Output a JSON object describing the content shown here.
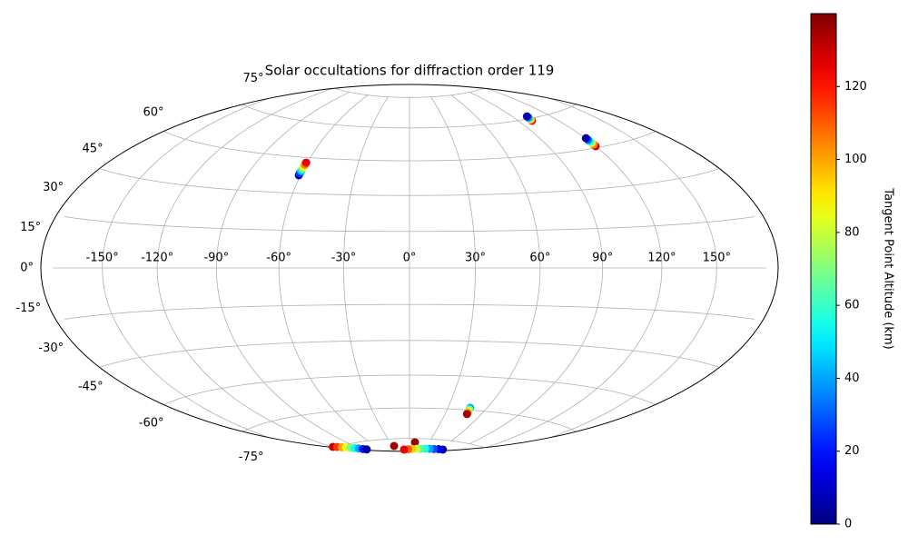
{
  "chart_data": {
    "type": "scatter",
    "title": "Solar occultations for diffraction order 119",
    "projection": "hammer",
    "grid": true,
    "xlim": [
      -180,
      180
    ],
    "ylim": [
      -90,
      90
    ],
    "xticks": [
      {
        "value": -150,
        "label": "-150°"
      },
      {
        "value": -120,
        "label": "-120°"
      },
      {
        "value": -90,
        "label": "-90°"
      },
      {
        "value": -60,
        "label": "-60°"
      },
      {
        "value": -30,
        "label": "-30°"
      },
      {
        "value": 0,
        "label": "0°"
      },
      {
        "value": 30,
        "label": "30°"
      },
      {
        "value": 60,
        "label": "60°"
      },
      {
        "value": 90,
        "label": "90°"
      },
      {
        "value": 120,
        "label": "120°"
      },
      {
        "value": 150,
        "label": "150°"
      }
    ],
    "yticks": [
      {
        "value": -75,
        "label": "-75°"
      },
      {
        "value": -60,
        "label": "-60°"
      },
      {
        "value": -45,
        "label": "-45°"
      },
      {
        "value": -30,
        "label": "-30°"
      },
      {
        "value": -15,
        "label": "-15°"
      },
      {
        "value": 0,
        "label": "0°"
      },
      {
        "value": 15,
        "label": "15°"
      },
      {
        "value": 30,
        "label": "30°"
      },
      {
        "value": 45,
        "label": "45°"
      },
      {
        "value": 60,
        "label": "60°"
      },
      {
        "value": 75,
        "label": "75°"
      }
    ],
    "x": [
      -60.9,
      -60.9,
      -60.8,
      -60.8,
      -60.7,
      -60.7,
      -60.6,
      100.4,
      100.8,
      101.1,
      101.5,
      101.8,
      120.0,
      120.1,
      120.2,
      120.2,
      120.3,
      120.4,
      47.3,
      47.5,
      47.8,
      48.0,
      48.3,
      -118,
      -113.6,
      -109.2,
      -104.8,
      -100.4,
      -96,
      -91.6,
      -87.2,
      -82.8,
      -27.8,
      8.6,
      67.5,
      58.7,
      49.8,
      41.0,
      32.2,
      23.4,
      14.6,
      5.8,
      -3.0,
      -11.8
    ],
    "y": [
      37.4,
      38.3,
      39.2,
      40.1,
      41.0,
      41.9,
      42.8,
      59.0,
      59.5,
      60.0,
      60.5,
      61.0,
      45.6,
      46.3,
      47.0,
      47.6,
      48.3,
      49.0,
      -59.0,
      -59.7,
      -60.4,
      -61.2,
      -61.9,
      -74.5,
      -75.0,
      -75.6,
      -76.1,
      -76.7,
      -77.2,
      -77.7,
      -78.3,
      -78.8,
      -78.7,
      -77.0,
      -79.6,
      -79.7,
      -79.9,
      -80.0,
      -80.1,
      -80.3,
      -80.4,
      -80.5,
      -80.7,
      -80.8
    ],
    "c": [
      5,
      25,
      45,
      65,
      85,
      105,
      125,
      125,
      95,
      65,
      35,
      5,
      130,
      105,
      80,
      55,
      30,
      5,
      40,
      60,
      80,
      100,
      135,
      130,
      115,
      100,
      85,
      70,
      55,
      40,
      20,
      5,
      135,
      138,
      5,
      15,
      28,
      40,
      55,
      65,
      80,
      95,
      110,
      125
    ],
    "colorbar": {
      "label": "Tangent Point Altitude (km)",
      "cmap": "jet",
      "clim": [
        0,
        140
      ],
      "ticks": [
        0,
        20,
        40,
        60,
        80,
        100,
        120
      ]
    }
  }
}
